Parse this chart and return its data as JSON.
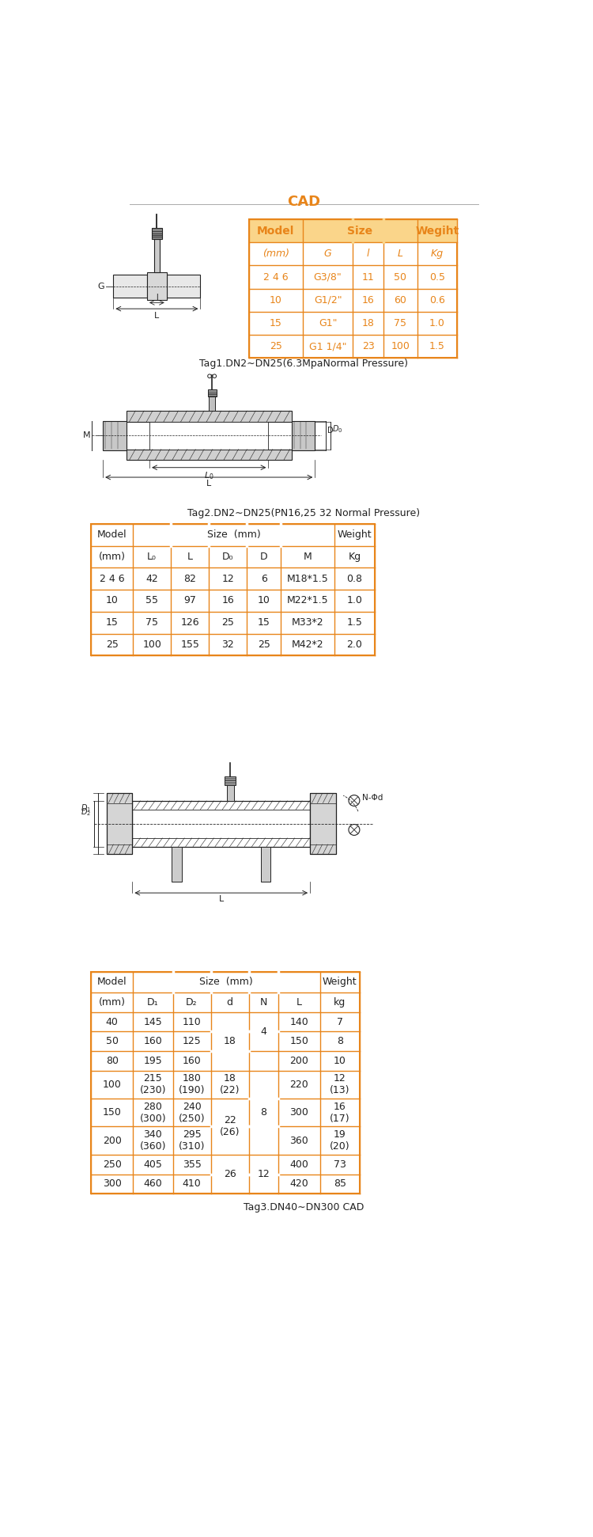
{
  "title": "CAD",
  "orange": "#E8851A",
  "black": "#222222",
  "light_orange": "#FAD58A",
  "table1_subheaders": [
    "（mm）",
    "G",
    "l",
    "L",
    "Kg"
  ],
  "table1_rows": [
    [
      "2 4 6",
      "G3/8\"",
      "11",
      "50",
      "0.5"
    ],
    [
      "10",
      "G1/2\"",
      "16",
      "60",
      "0.6"
    ],
    [
      "15",
      "G1\"",
      "18",
      "75",
      "1.0"
    ],
    [
      "25",
      "G1 1/4\"",
      "23",
      "100",
      "1.5"
    ]
  ],
  "tag1": "Tag1.DN2∼DN25(6.3MpaNormal Pressure)",
  "table2_subheaders": [
    "(mm)",
    "L₀",
    "L",
    "D₀",
    "D",
    "M",
    "Kg"
  ],
  "table2_rows": [
    [
      "2 4 6",
      "42",
      "82",
      "12",
      "6",
      "M18*1.5",
      "0.8"
    ],
    [
      "10",
      "55",
      "97",
      "16",
      "10",
      "M22*1.5",
      "1.0"
    ],
    [
      "15",
      "75",
      "126",
      "25",
      "15",
      "M33*2",
      "1.5"
    ],
    [
      "25",
      "100",
      "155",
      "32",
      "25",
      "M42*2",
      "2.0"
    ]
  ],
  "tag2": "Tag2.DN2∼DN25(PN16,25 32 Normal Pressure)",
  "table3_subheaders": [
    "(mm)",
    "D₁",
    "D₂",
    "d",
    "N",
    "L",
    "kg"
  ],
  "tag3": "Tag3.DN40∼DN300 CAD"
}
